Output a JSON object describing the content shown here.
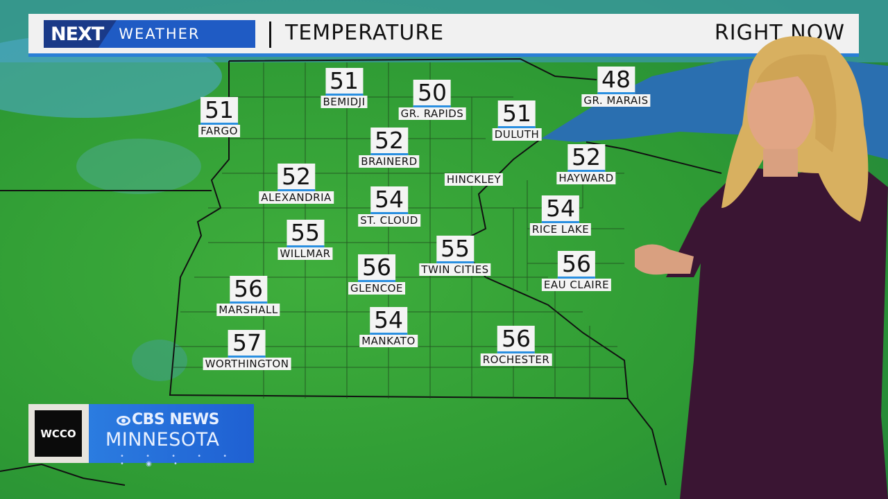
{
  "header": {
    "logo_next": "NEXT",
    "logo_weather": "WEATHER",
    "title": "TEMPERATURE",
    "timeframe": "RIGHT NOW"
  },
  "cities": [
    {
      "name": "FARGO",
      "temp": "51"
    },
    {
      "name": "BEMIDJI",
      "temp": "51"
    },
    {
      "name": "GR. RAPIDS",
      "temp": "50"
    },
    {
      "name": "DULUTH",
      "temp": "51"
    },
    {
      "name": "GR. MARAIS",
      "temp": "48"
    },
    {
      "name": "BRAINERD",
      "temp": "52"
    },
    {
      "name": "HINCKLEY",
      "temp": null
    },
    {
      "name": "HAYWARD",
      "temp": "52"
    },
    {
      "name": "ALEXANDRIA",
      "temp": "52"
    },
    {
      "name": "ST. CLOUD",
      "temp": "54"
    },
    {
      "name": "RICE LAKE",
      "temp": "54"
    },
    {
      "name": "WILLMAR",
      "temp": "55"
    },
    {
      "name": "TWIN CITIES",
      "temp": "55"
    },
    {
      "name": "GLENCOE",
      "temp": "56"
    },
    {
      "name": "EAU CLAIRE",
      "temp": "56"
    },
    {
      "name": "MARSHALL",
      "temp": "56"
    },
    {
      "name": "MANKATO",
      "temp": "54"
    },
    {
      "name": "ROCHESTER",
      "temp": "56"
    },
    {
      "name": "WORTHINGTON",
      "temp": "57"
    }
  ],
  "brand": {
    "station": "WCCO",
    "network": "CBS NEWS",
    "region": "MINNESOTA"
  },
  "colors": {
    "accent_blue": "#2a7fd6",
    "map_green": "#2f9a35",
    "lake_blue": "#2a6fb0",
    "dress_purple": "#3a1533"
  }
}
